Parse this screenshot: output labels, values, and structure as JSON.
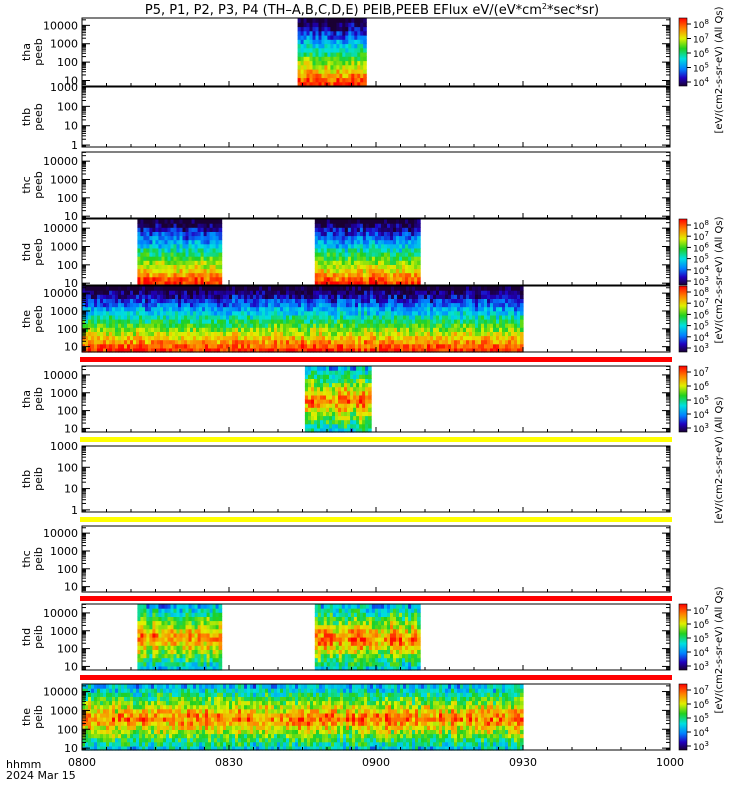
{
  "title": "P5, P1, P2, P3, P4 (TH-A,B,C,D,E) PEIB,PEEB EFlux eV/(eV*cm²-s-sr-eV) (All Qs)",
  "title_parts": {
    "main": "P5, P1, P2, P3, P4 (TH–A,B,C,D,E) PEIB,PEEB EFlux eV/(eV*cm",
    "sup": "2",
    "end": "*sec*sr)"
  },
  "x_axis": {
    "label_line1": "hhmm",
    "label_line2": "2024 Mar 15",
    "ticks": [
      "0800",
      "0830",
      "0900",
      "0930",
      "1000"
    ],
    "range_minutes": [
      0,
      120
    ]
  },
  "colorbar_units": {
    "eflux": "[eV/(cm2-s-sr-eV)",
    "eflux_short": "[eV/(cm2-s-sr-eV)",
    "allqs": "(All Qs)"
  },
  "colors": {
    "red_bar": "#ff0000",
    "yellow_bar": "#ffff00",
    "fill_black": "#000000"
  },
  "chart_data": {
    "type": "heatmap",
    "panels": [
      {
        "probe": "tha",
        "product": "peeb",
        "ylabel": [
          "tha",
          "peeb"
        ],
        "yticks": [
          "10000",
          "1000",
          "100",
          "10"
        ],
        "ylog": [
          0.7,
          4.4
        ],
        "spans": [
          [
            44,
            58
          ]
        ],
        "colorbar": [
          "10",
          "10",
          "10",
          "10",
          "10"
        ],
        "colorbar_exp": [
          "8",
          "7",
          "6",
          "5",
          "4"
        ]
      },
      {
        "probe": "thb",
        "product": "peeb",
        "ylabel": [
          "thb",
          "peeb"
        ],
        "yticks": [
          "1000",
          "100",
          "10",
          "1"
        ],
        "ylog": [
          -0.1,
          3.0
        ],
        "spans": [],
        "colorbar": [],
        "colorbar_exp": []
      },
      {
        "probe": "thc",
        "product": "peeb",
        "ylabel": [
          "thc",
          "peeb"
        ],
        "yticks": [
          "10000",
          "1000",
          "100",
          "10"
        ],
        "ylog": [
          0.9,
          4.5
        ],
        "spans": [],
        "colorbar": [],
        "colorbar_exp": []
      },
      {
        "probe": "thd",
        "product": "peeb",
        "ylabel": [
          "thd",
          "peeb"
        ],
        "yticks": [
          "10000",
          "1000",
          "100",
          "10"
        ],
        "ylog": [
          0.9,
          4.5
        ],
        "spans": [
          [
            11.3,
            28.5
          ],
          [
            47.5,
            69
          ]
        ],
        "colorbar": [
          "10",
          "10",
          "10",
          "10",
          "10",
          "10"
        ],
        "colorbar_exp": [
          "8",
          "7",
          "6",
          "5",
          "4",
          "3"
        ]
      },
      {
        "probe": "the",
        "product": "peeb",
        "ylabel": [
          "the",
          "peeb"
        ],
        "yticks": [
          "10000",
          "1000",
          "100",
          "10"
        ],
        "ylog": [
          0.7,
          4.4
        ],
        "spans": [
          [
            0,
            90
          ]
        ],
        "colorbar": [
          "10",
          "10",
          "10",
          "10",
          "10",
          "10"
        ],
        "colorbar_exp": [
          "8",
          "7",
          "6",
          "5",
          "4",
          "3"
        ]
      },
      {
        "probe": "tha",
        "product": "peib",
        "ylabel": [
          "tha",
          "peib"
        ],
        "yticks": [
          "10000",
          "1000",
          "100",
          "10"
        ],
        "ylog": [
          0.8,
          4.5
        ],
        "spans": [
          [
            45.5,
            59
          ]
        ],
        "colorbar": [
          "10",
          "10",
          "10",
          "10",
          "10"
        ],
        "colorbar_exp": [
          "7",
          "6",
          "5",
          "4",
          "3"
        ]
      },
      {
        "probe": "thb",
        "product": "peib",
        "ylabel": [
          "thb",
          "peib"
        ],
        "yticks": [
          "1000",
          "100",
          "10",
          "1"
        ],
        "ylog": [
          -0.1,
          3.0
        ],
        "spans": [],
        "colorbar": [],
        "colorbar_exp": []
      },
      {
        "probe": "thc",
        "product": "peib",
        "ylabel": [
          "thc",
          "peib"
        ],
        "yticks": [
          "10000",
          "1000",
          "100",
          "10"
        ],
        "ylog": [
          0.7,
          4.4
        ],
        "spans": [],
        "colorbar": [],
        "colorbar_exp": []
      },
      {
        "probe": "thd",
        "product": "peib",
        "ylabel": [
          "thd",
          "peib"
        ],
        "yticks": [
          "10000",
          "1000",
          "100",
          "10"
        ],
        "ylog": [
          0.8,
          4.5
        ],
        "spans": [
          [
            11.3,
            28.5
          ],
          [
            47.5,
            69
          ]
        ],
        "colorbar": [
          "10",
          "10",
          "10",
          "10",
          "10"
        ],
        "colorbar_exp": [
          "7",
          "6",
          "5",
          "4",
          "3"
        ]
      },
      {
        "probe": "the",
        "product": "peib",
        "ylabel": [
          "the",
          "peib"
        ],
        "yticks": [
          "10000",
          "1000",
          "100",
          "10"
        ],
        "ylog": [
          0.9,
          4.4
        ],
        "spans": [
          [
            0,
            90
          ]
        ],
        "colorbar": [
          "10",
          "10",
          "10",
          "10",
          "10"
        ],
        "colorbar_exp": [
          "7",
          "6",
          "5",
          "4",
          "3"
        ]
      }
    ],
    "flag_bars": [
      {
        "after_panel": 4,
        "color": "red"
      },
      {
        "after_panel": 5,
        "color": "yellow"
      },
      {
        "after_panel": 6,
        "color": "yellow"
      },
      {
        "after_panel": 7,
        "color": "red"
      },
      {
        "after_panel": 8,
        "color": "red"
      }
    ]
  }
}
